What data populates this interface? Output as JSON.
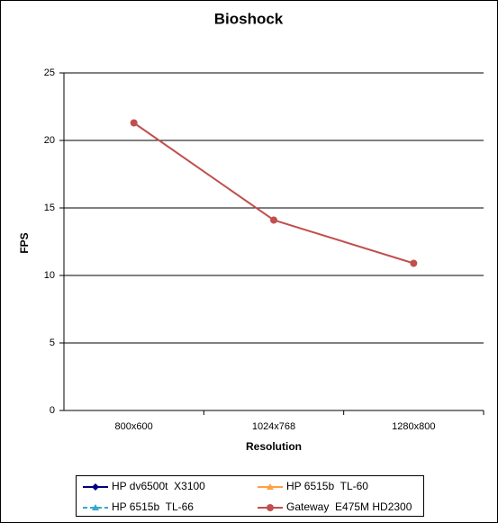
{
  "chart_data": {
    "type": "line",
    "title": "Bioshock",
    "xlabel": "Resolution",
    "ylabel": "FPS",
    "categories": [
      "800x600",
      "1024x768",
      "1280x800"
    ],
    "series": [
      {
        "name": "HP dv6500t  X3100",
        "color": "#000080",
        "marker": "diamond",
        "values": [
          null,
          null,
          null
        ]
      },
      {
        "name": "HP 6515b  TL-60",
        "color": "#ffa040",
        "marker": "triangle",
        "values": [
          null,
          null,
          null
        ]
      },
      {
        "name": "HP 6515b  TL-66",
        "color": "#33aacc",
        "marker": "triangle",
        "dashed": true,
        "values": [
          null,
          null,
          null
        ]
      },
      {
        "name": "Gateway  E475M HD2300",
        "color": "#c0504d",
        "marker": "circle",
        "values": [
          21.3,
          14.1,
          10.9
        ]
      }
    ],
    "ylim": [
      0,
      25
    ],
    "yticks": [
      0,
      5,
      10,
      15,
      20,
      25
    ],
    "grid": true
  }
}
